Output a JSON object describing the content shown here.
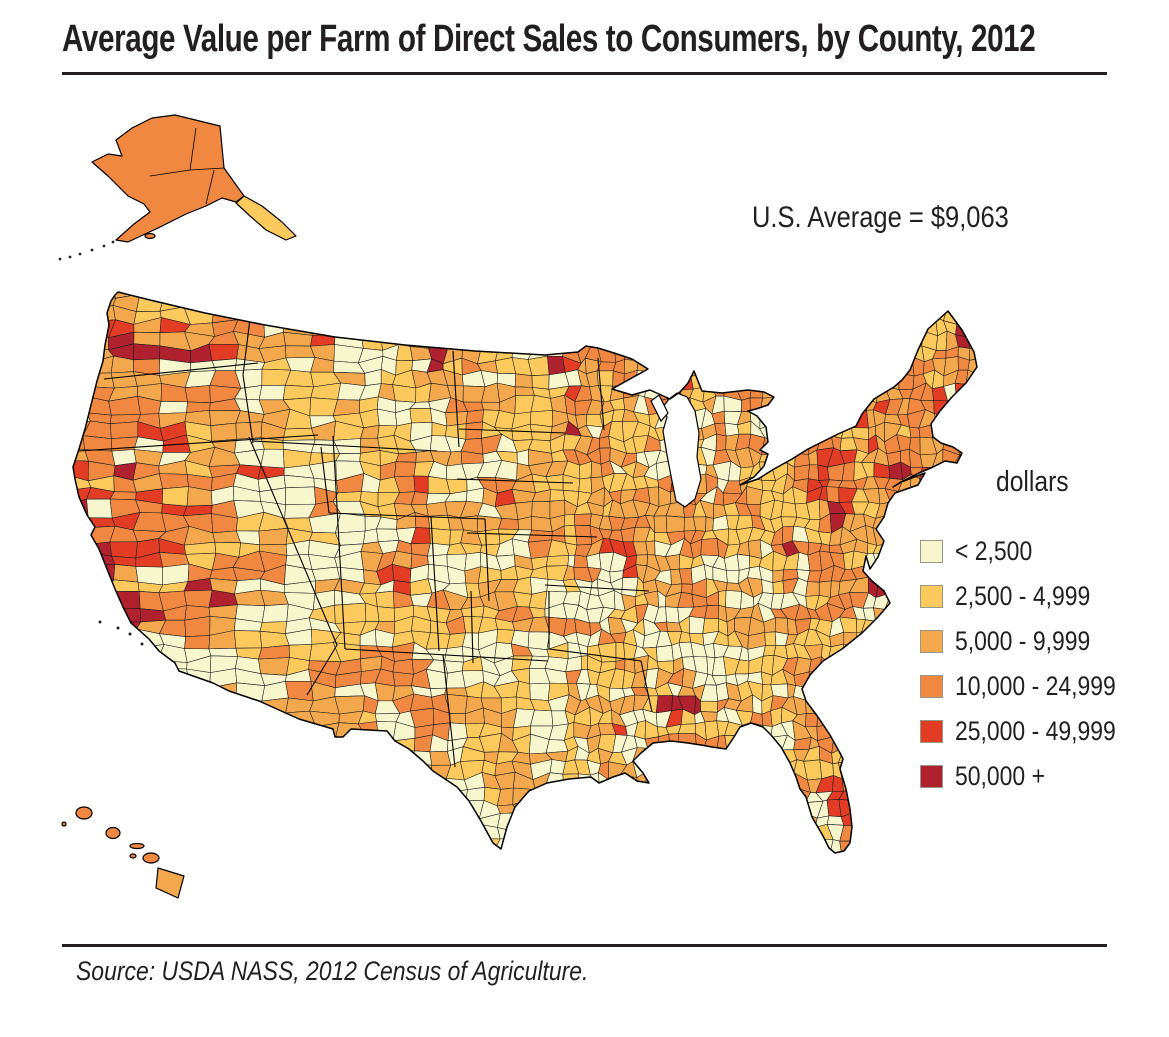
{
  "title": "Average Value per Farm of Direct Sales to Consumers, by County, 2012",
  "annotation": {
    "us_average": "U.S. Average = $9,063"
  },
  "legend": {
    "title": "dollars",
    "items": [
      {
        "label": "< 2,500",
        "color": "#F7F6CD"
      },
      {
        "label": "2,500 - 4,999",
        "color": "#FCC95C"
      },
      {
        "label": "5,000 - 9,999",
        "color": "#F4A84D"
      },
      {
        "label": "10,000 - 24,999",
        "color": "#F08841"
      },
      {
        "label": "25,000 - 49,999",
        "color": "#E23C25"
      },
      {
        "label": "50,000 +",
        "color": "#B0212F"
      }
    ]
  },
  "source": "Source: USDA NASS, 2012 Census of Agriculture.",
  "chart_data": {
    "type": "choropleth_map",
    "title": "Average Value per Farm of Direct Sales to Consumers, by County, 2012",
    "geography": "United States counties (contiguous 48 states with Alaska and Hawaii insets)",
    "metric": "Average value per farm of direct sales to consumers",
    "unit": "dollars",
    "year": 2012,
    "us_average_dollars": 9063,
    "bins": [
      {
        "range": "< 2,500",
        "min": 0,
        "max": 2499,
        "color": "#F7F6CD"
      },
      {
        "range": "2,500 - 4,999",
        "min": 2500,
        "max": 4999,
        "color": "#FCC95C"
      },
      {
        "range": "5,000 - 9,999",
        "min": 5000,
        "max": 9999,
        "color": "#F4A84D"
      },
      {
        "range": "10,000 - 24,999",
        "min": 10000,
        "max": 24999,
        "color": "#F08841"
      },
      {
        "range": "25,000 - 49,999",
        "min": 25000,
        "max": 49999,
        "color": "#E23C25"
      },
      {
        "range": "50,000 +",
        "min": 50000,
        "max": null,
        "color": "#B0212F"
      }
    ],
    "legend_position": "right",
    "visible_regional_pattern": {
      "high_value_clusters": "California coast, southern Nevada/NW Arizona, Chicago-Milwaukee lakeshore, New York City / Long Island / southern New England, mid-Atlantic and Carolina coasts",
      "low_value_areas": "Great Basin (Nevada/Utah/Idaho), Great Plains, Texas, lower Mississippi valley and interior South",
      "alaska_inset": "mostly 10,000 - 24,999 with 2,500 - 4,999 panhandle",
      "hawaii_inset": "mostly 10,000 - 24,999"
    },
    "source": "USDA NASS, 2012 Census of Agriculture"
  }
}
